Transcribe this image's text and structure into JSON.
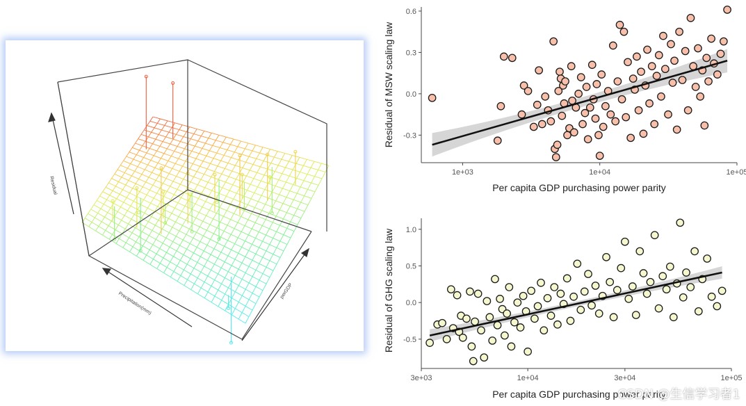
{
  "chart_data": [
    {
      "type": "scatter",
      "name": "3d-regression-plane",
      "title": "",
      "axes": {
        "z_label": "Residual",
        "x_label": "Precipitation(mm)",
        "y_label": "perGDP"
      },
      "surface": "fitted regression plane, colored blue (low) to red (high)",
      "points_z": [
        0.55,
        0.5,
        0.45,
        0.42,
        0.38,
        0.35,
        0.3,
        0.28,
        0.25,
        0.2,
        0.18,
        0.15,
        0.1,
        0.05,
        0.0,
        -0.05,
        -0.1,
        -0.15,
        -0.2,
        -0.25,
        -0.3,
        -0.35,
        -0.4,
        -0.45,
        -0.5
      ]
    },
    {
      "type": "scatter",
      "name": "msw-scaling-residual",
      "xlabel": "Per capita GDP purchasing power parity",
      "ylabel": "Residual of MSW scaling law",
      "xscale": "log",
      "xlim": [
        500,
        100000
      ],
      "ylim": [
        -0.5,
        0.63
      ],
      "xticks": [
        "1e+03",
        "1e+04",
        "1e+05"
      ],
      "yticks": [
        "0.6",
        "0.3",
        "0.0",
        "-0.3"
      ],
      "fit": {
        "x": [
          600,
          85000
        ],
        "y": [
          -0.37,
          0.24
        ]
      },
      "point_color": "#f8c0ab",
      "points": [
        [
          600,
          -0.03
        ],
        [
          1800,
          -0.34
        ],
        [
          1900,
          -0.09
        ],
        [
          2000,
          0.27
        ],
        [
          2300,
          0.26
        ],
        [
          2700,
          -0.15
        ],
        [
          2800,
          0.06
        ],
        [
          3000,
          0.02
        ],
        [
          3300,
          -0.24
        ],
        [
          3500,
          -0.08
        ],
        [
          3600,
          0.17
        ],
        [
          3800,
          -0.22
        ],
        [
          4000,
          -0.02
        ],
        [
          4200,
          -0.12
        ],
        [
          4400,
          -0.2
        ],
        [
          4600,
          0.38
        ],
        [
          4700,
          -0.4
        ],
        [
          4800,
          -0.46
        ],
        [
          4900,
          -0.37
        ],
        [
          5000,
          0.02
        ],
        [
          5100,
          0.16
        ],
        [
          5200,
          0.11
        ],
        [
          5300,
          -0.16
        ],
        [
          5400,
          0.06
        ],
        [
          5500,
          -0.07
        ],
        [
          5600,
          0.09
        ],
        [
          5800,
          -0.3
        ],
        [
          6000,
          -0.25
        ],
        [
          6200,
          0.2
        ],
        [
          6300,
          -0.05
        ],
        [
          6500,
          -0.28
        ],
        [
          6700,
          -0.1
        ],
        [
          7000,
          0.0
        ],
        [
          7300,
          0.12
        ],
        [
          7500,
          -0.22
        ],
        [
          7800,
          -0.14
        ],
        [
          8000,
          0.05
        ],
        [
          8200,
          -0.33
        ],
        [
          8500,
          -0.1
        ],
        [
          8800,
          0.21
        ],
        [
          9000,
          -0.04
        ],
        [
          9300,
          -0.18
        ],
        [
          9500,
          0.07
        ],
        [
          9800,
          -0.3
        ],
        [
          10000,
          -0.45
        ],
        [
          10300,
          0.14
        ],
        [
          10600,
          -0.24
        ],
        [
          11000,
          -0.09
        ],
        [
          11500,
          0.02
        ],
        [
          12000,
          -0.15
        ],
        [
          12500,
          0.35
        ],
        [
          13000,
          -0.2
        ],
        [
          13500,
          0.09
        ],
        [
          14000,
          0.5
        ],
        [
          14500,
          -0.04
        ],
        [
          15000,
          0.45
        ],
        [
          15500,
          -0.17
        ],
        [
          16000,
          0.23
        ],
        [
          16800,
          -0.32
        ],
        [
          17500,
          0.11
        ],
        [
          18000,
          0.03
        ],
        [
          18600,
          0.27
        ],
        [
          19200,
          -0.12
        ],
        [
          20000,
          0.16
        ],
        [
          20800,
          -0.29
        ],
        [
          21500,
          0.06
        ],
        [
          22200,
          0.32
        ],
        [
          23000,
          -0.07
        ],
        [
          24000,
          0.2
        ],
        [
          25000,
          -0.22
        ],
        [
          26000,
          0.13
        ],
        [
          27000,
          0.28
        ],
        [
          28000,
          -0.02
        ],
        [
          29000,
          0.42
        ],
        [
          30000,
          0.18
        ],
        [
          31500,
          -0.15
        ],
        [
          33000,
          0.36
        ],
        [
          34000,
          0.08
        ],
        [
          35000,
          0.24
        ],
        [
          36500,
          -0.26
        ],
        [
          38000,
          0.45
        ],
        [
          40000,
          0.1
        ],
        [
          42000,
          0.31
        ],
        [
          44000,
          -0.12
        ],
        [
          46000,
          0.55
        ],
        [
          48000,
          0.2
        ],
        [
          50000,
          0.05
        ],
        [
          52000,
          0.33
        ],
        [
          54000,
          -0.02
        ],
        [
          56000,
          0.17
        ],
        [
          58000,
          -0.23
        ],
        [
          60000,
          0.26
        ],
        [
          62000,
          0.09
        ],
        [
          65000,
          0.4
        ],
        [
          68000,
          0.22
        ],
        [
          72000,
          0.14
        ],
        [
          76000,
          0.29
        ],
        [
          80000,
          0.38
        ],
        [
          85000,
          0.61
        ]
      ]
    },
    {
      "type": "scatter",
      "name": "ghg-scaling-residual",
      "xlabel": "Per capita GDP purchasing power parity",
      "ylabel": "Residual of GHG scaling law",
      "xscale": "log",
      "xlim": [
        3000,
        100000
      ],
      "ylim": [
        -0.9,
        1.15
      ],
      "xticks": [
        "3e+03",
        "1e+04",
        "3e+04",
        "1e+05"
      ],
      "yticks": [
        "1.0",
        "0.5",
        "0.0",
        "-0.5"
      ],
      "fit": {
        "x": [
          3300,
          90000
        ],
        "y": [
          -0.45,
          0.41
        ]
      },
      "point_color": "#f5f7cf",
      "points": [
        [
          3300,
          -0.55
        ],
        [
          3600,
          -0.3
        ],
        [
          3800,
          -0.28
        ],
        [
          4000,
          -0.5
        ],
        [
          4200,
          0.18
        ],
        [
          4300,
          -0.35
        ],
        [
          4500,
          0.1
        ],
        [
          4600,
          -0.4
        ],
        [
          4700,
          -0.18
        ],
        [
          4800,
          -0.48
        ],
        [
          5000,
          -0.22
        ],
        [
          5200,
          0.15
        ],
        [
          5300,
          -0.6
        ],
        [
          5400,
          -0.8
        ],
        [
          5500,
          -0.26
        ],
        [
          5700,
          0.12
        ],
        [
          5900,
          -0.38
        ],
        [
          6100,
          -0.75
        ],
        [
          6300,
          0.02
        ],
        [
          6500,
          -0.2
        ],
        [
          6700,
          -0.52
        ],
        [
          6900,
          0.32
        ],
        [
          7100,
          -0.31
        ],
        [
          7300,
          0.05
        ],
        [
          7500,
          -0.09
        ],
        [
          7700,
          -0.45
        ],
        [
          7900,
          -0.15
        ],
        [
          8100,
          0.21
        ],
        [
          8300,
          -0.6
        ],
        [
          8600,
          -0.27
        ],
        [
          8900,
          0.0
        ],
        [
          9200,
          -0.34
        ],
        [
          9500,
          0.09
        ],
        [
          9800,
          -0.12
        ],
        [
          10000,
          -0.67
        ],
        [
          10400,
          0.16
        ],
        [
          10800,
          -0.22
        ],
        [
          11200,
          -0.05
        ],
        [
          11600,
          0.27
        ],
        [
          12000,
          -0.38
        ],
        [
          12500,
          0.06
        ],
        [
          13000,
          -0.18
        ],
        [
          13500,
          0.21
        ],
        [
          14000,
          -0.3
        ],
        [
          14500,
          0.12
        ],
        [
          15000,
          -0.02
        ],
        [
          15600,
          0.33
        ],
        [
          16200,
          -0.25
        ],
        [
          16800,
          0.08
        ],
        [
          17500,
          0.53
        ],
        [
          18200,
          -0.1
        ],
        [
          19000,
          0.15
        ],
        [
          19800,
          0.39
        ],
        [
          20600,
          -0.04
        ],
        [
          21500,
          0.23
        ],
        [
          22400,
          -0.15
        ],
        [
          23300,
          0.09
        ],
        [
          24300,
          0.62
        ],
        [
          25300,
          0.28
        ],
        [
          26400,
          -0.2
        ],
        [
          27500,
          0.17
        ],
        [
          28700,
          0.47
        ],
        [
          30000,
          0.83
        ],
        [
          31300,
          0.05
        ],
        [
          32700,
          0.22
        ],
        [
          34000,
          -0.17
        ],
        [
          35500,
          0.7
        ],
        [
          37000,
          0.4
        ],
        [
          38500,
          0.12
        ],
        [
          40000,
          0.28
        ],
        [
          42000,
          0.92
        ],
        [
          44000,
          -0.08
        ],
        [
          46000,
          0.36
        ],
        [
          48000,
          0.18
        ],
        [
          50000,
          0.49
        ],
        [
          52000,
          -0.2
        ],
        [
          54000,
          0.26
        ],
        [
          56000,
          1.09
        ],
        [
          58000,
          0.07
        ],
        [
          60000,
          0.41
        ],
        [
          63000,
          0.21
        ],
        [
          66000,
          0.7
        ],
        [
          69000,
          -0.12
        ],
        [
          72000,
          0.32
        ],
        [
          76000,
          0.6
        ],
        [
          80000,
          0.08
        ],
        [
          85000,
          -0.05
        ],
        [
          90000,
          0.16
        ]
      ]
    }
  ],
  "watermark": "CSDN @生信学习者1"
}
